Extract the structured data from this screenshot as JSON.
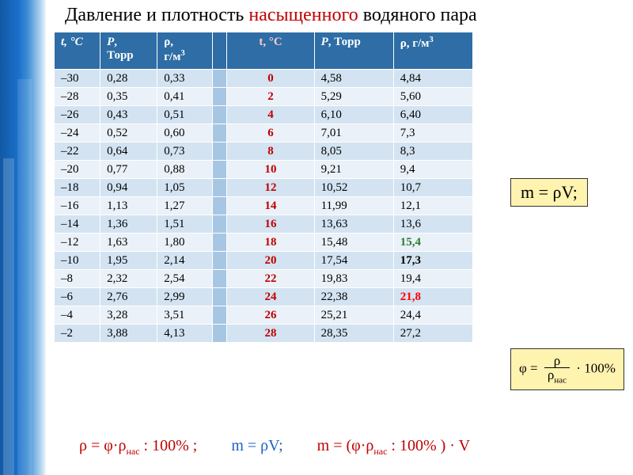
{
  "title_before": "Давление и плотность ",
  "title_accent": "насыщенного",
  "title_after": " водяного пара",
  "headers": {
    "t1": "t, °C",
    "p1": "P, Торр",
    "r1": "ρ, г/м³",
    "t2": "t, °C",
    "p2": "P, Торр",
    "r2": "ρ, г/м³"
  },
  "colors": {
    "header_bg": "#2e6da5",
    "header_fg": "#ffffff",
    "row_odd": "#d3e3f1",
    "row_even": "#eaf1f8",
    "spacer": "#a7c6e3",
    "accent_red": "#c00000",
    "hl_green": "#2e7d32",
    "hl_red": "#ff0000",
    "formula_bg": "#fff3b0"
  },
  "rows": [
    {
      "t1": "–30",
      "p1": "0,28",
      "r1": "0,33",
      "t2": "0",
      "p2": "4,58",
      "r2": "4,84"
    },
    {
      "t1": "–28",
      "p1": "0,35",
      "r1": "0,41",
      "t2": "2",
      "p2": "5,29",
      "r2": "5,60"
    },
    {
      "t1": "–26",
      "p1": "0,43",
      "r1": "0,51",
      "t2": "4",
      "p2": "6,10",
      "r2": "6,40"
    },
    {
      "t1": "–24",
      "p1": "0,52",
      "r1": "0,60",
      "t2": "6",
      "p2": "7,01",
      "r2": "7,3"
    },
    {
      "t1": "–22",
      "p1": "0,64",
      "r1": "0,73",
      "t2": "8",
      "p2": "8,05",
      "r2": "8,3"
    },
    {
      "t1": "–20",
      "p1": "0,77",
      "r1": "0,88",
      "t2": "10",
      "p2": "9,21",
      "r2": "9,4"
    },
    {
      "t1": "–18",
      "p1": "0,94",
      "r1": "1,05",
      "t2": "12",
      "p2": "10,52",
      "r2": "10,7"
    },
    {
      "t1": "–16",
      "p1": "1,13",
      "r1": "1,27",
      "t2": "14",
      "p2": "11,99",
      "r2": "12,1"
    },
    {
      "t1": "–14",
      "p1": "1,36",
      "r1": "1,51",
      "t2": "16",
      "p2": "13,63",
      "r2": "13,6"
    },
    {
      "t1": "–12",
      "p1": "1,63",
      "r1": "1,80",
      "t2": "18",
      "p2": "15,48",
      "r2": "15,4",
      "r2_class": "hl-green"
    },
    {
      "t1": "–10",
      "p1": "1,95",
      "r1": "2,14",
      "t2": "20",
      "p2": "17,54",
      "r2": "17,3",
      "r2_class": "hl-bold"
    },
    {
      "t1": "–8",
      "p1": "2,32",
      "r1": "2,54",
      "t2": "22",
      "p2": "19,83",
      "r2": "19,4"
    },
    {
      "t1": "–6",
      "p1": "2,76",
      "r1": "2,99",
      "t2": "24",
      "p2": "22,38",
      "r2": "21,8",
      "r2_class": "hl-red"
    },
    {
      "t1": "–4",
      "p1": "3,28",
      "r1": "3,51",
      "t2": "26",
      "p2": "25,21",
      "r2": "24,4"
    },
    {
      "t1": "–2",
      "p1": "3,88",
      "r1": "4,13",
      "t2": "28",
      "p2": "28,35",
      "r2": "27,2"
    }
  ],
  "formula_mass": "m = ρV;",
  "formula_phi": {
    "prefix": "φ =",
    "num": "ρ",
    "den": "ρ",
    "den_sub": "нас",
    "suffix": "· 100%"
  },
  "bottom": {
    "seg1_pre": "ρ = φ·ρ",
    "seg1_sub": "нас",
    "seg1_post": " : 100% ;",
    "seg2": "m = ρV;",
    "seg3_pre": "m = (φ·ρ",
    "seg3_sub": "нас",
    "seg3_post": " : 100% ) · V"
  }
}
